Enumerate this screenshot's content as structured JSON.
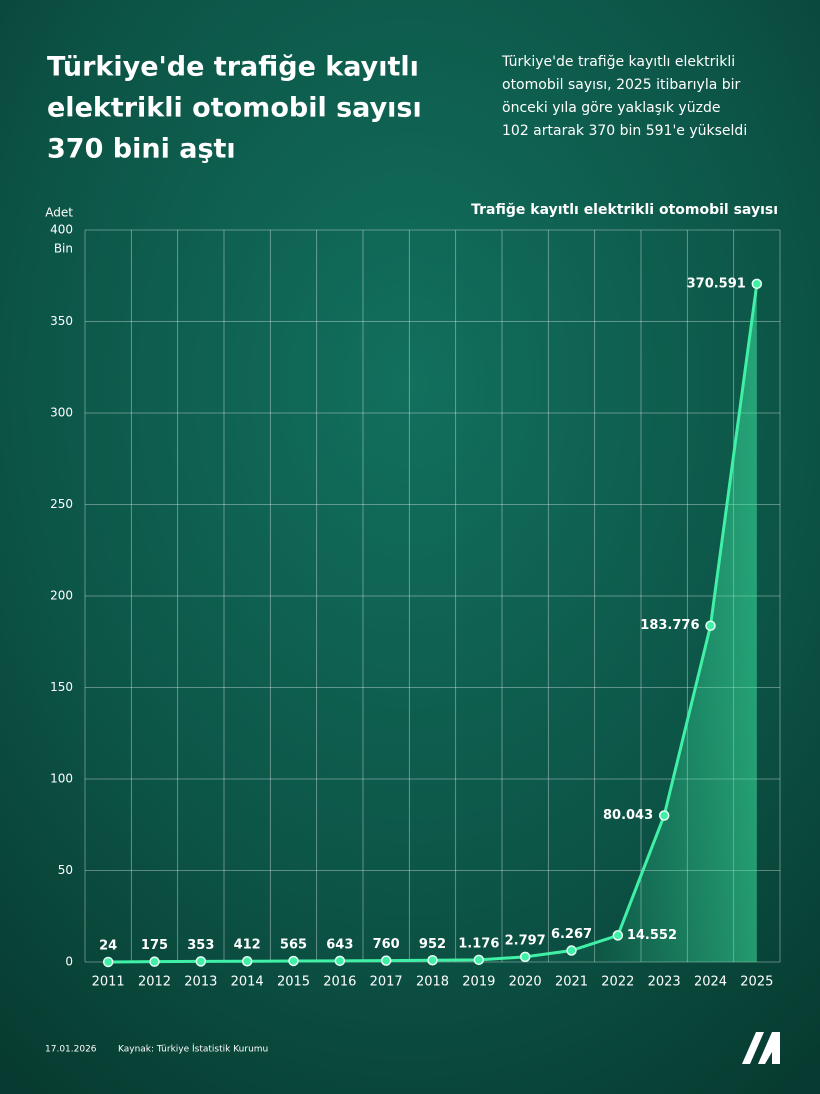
{
  "header": {
    "title_lines": [
      "Türkiye'de trafiğe kayıtlı",
      "elektrikli otomobil sayısı",
      "370 bini aştı"
    ],
    "subtitle_lines": [
      "Türkiye'de trafiğe kayıtlı elektrikli",
      "otomobil sayısı, 2025 itibarıyla bir",
      "önceki yıla göre yaklaşık yüzde",
      "102 artarak 370 bin 591'e yükseldi"
    ]
  },
  "chart_data": {
    "type": "line",
    "title": "Trafiğe kayıtlı elektrikli otomobil sayısı",
    "y_axis_label": "Adet",
    "y_unit": "Bin",
    "categories": [
      "2011",
      "2012",
      "2013",
      "2014",
      "2015",
      "2016",
      "2017",
      "2018",
      "2019",
      "2020",
      "2021",
      "2022",
      "2023",
      "2024",
      "2025"
    ],
    "values": [
      0.024,
      0.175,
      0.353,
      0.412,
      0.565,
      0.643,
      0.76,
      0.952,
      1.176,
      2.797,
      6.267,
      14.552,
      80.043,
      183.776,
      370.591
    ],
    "value_labels": [
      "24",
      "175",
      "353",
      "412",
      "565",
      "643",
      "760",
      "952",
      "1.176",
      "2.797",
      "6.267",
      "14.552",
      "80.043",
      "183.776",
      "370.591"
    ],
    "color": "#3ff0a6",
    "ylim": [
      0,
      400
    ],
    "yticks": [
      0,
      50,
      100,
      150,
      200,
      250,
      300,
      350,
      400
    ],
    "grid": true
  },
  "footer": {
    "date": "17.01.2026",
    "source": "Kaynak: Türkiye İstatistik Kurumu"
  }
}
